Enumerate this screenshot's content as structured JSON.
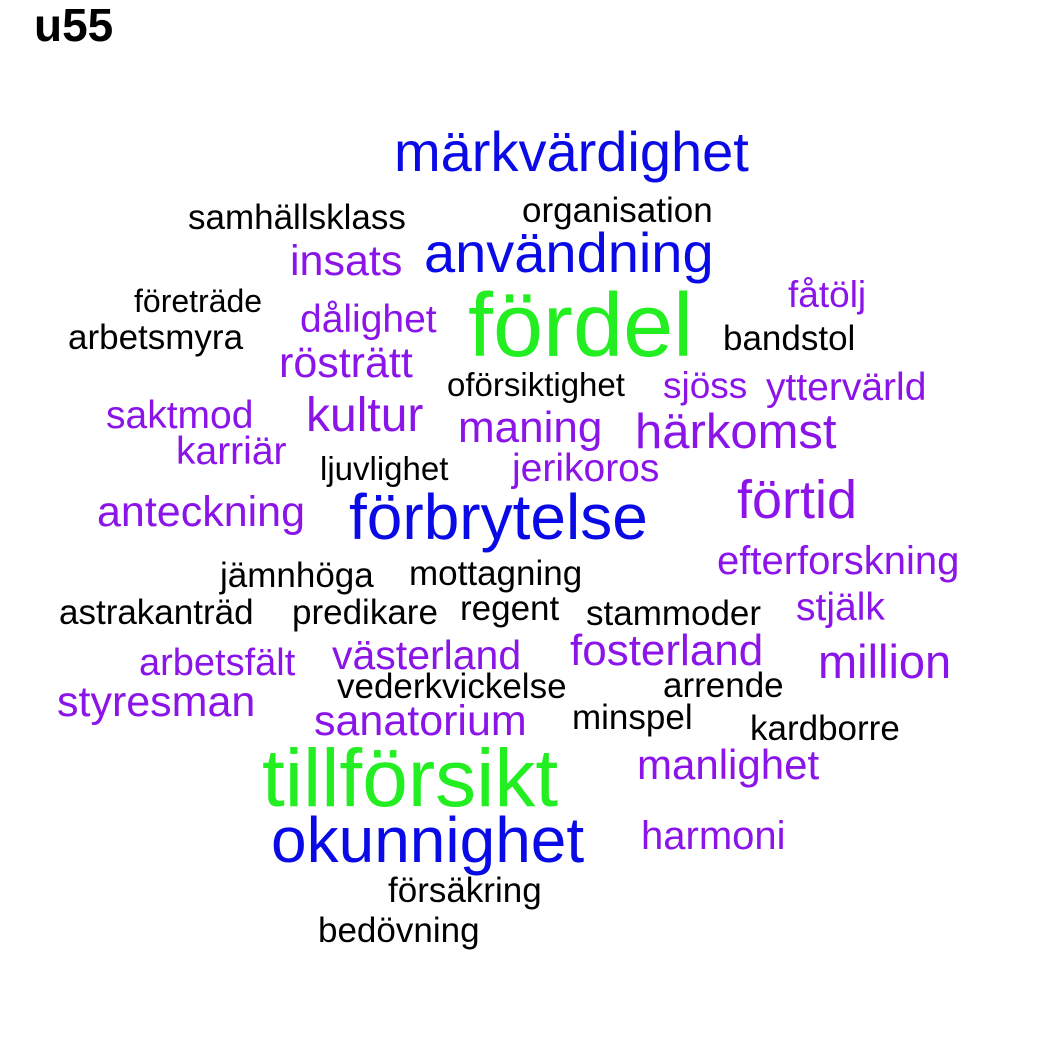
{
  "title": "u55",
  "colors": {
    "green": "#22ee22",
    "blue": "#0a0ae6",
    "purple": "#8b14e8",
    "black": "#000000"
  },
  "words": [
    {
      "text": "märkvärdighet",
      "color": "blue"
    },
    {
      "text": "samhällsklass",
      "color": "black"
    },
    {
      "text": "organisation",
      "color": "black"
    },
    {
      "text": "insats",
      "color": "purple"
    },
    {
      "text": "användning",
      "color": "blue"
    },
    {
      "text": "fåtölj",
      "color": "purple"
    },
    {
      "text": "företräde",
      "color": "black"
    },
    {
      "text": "dålighet",
      "color": "purple"
    },
    {
      "text": "fördel",
      "color": "green"
    },
    {
      "text": "arbetsmyra",
      "color": "black"
    },
    {
      "text": "bandstol",
      "color": "black"
    },
    {
      "text": "rösträtt",
      "color": "purple"
    },
    {
      "text": "oförsiktighet",
      "color": "black"
    },
    {
      "text": "sjöss",
      "color": "purple"
    },
    {
      "text": "yttervärld",
      "color": "purple"
    },
    {
      "text": "saktmod",
      "color": "purple"
    },
    {
      "text": "kultur",
      "color": "purple"
    },
    {
      "text": "maning",
      "color": "purple"
    },
    {
      "text": "härkomst",
      "color": "purple"
    },
    {
      "text": "karriär",
      "color": "purple"
    },
    {
      "text": "ljuvlighet",
      "color": "black"
    },
    {
      "text": "jerikoros",
      "color": "purple"
    },
    {
      "text": "förtid",
      "color": "purple"
    },
    {
      "text": "anteckning",
      "color": "purple"
    },
    {
      "text": "förbrytelse",
      "color": "blue"
    },
    {
      "text": "efterforskning",
      "color": "purple"
    },
    {
      "text": "jämnhöga",
      "color": "black"
    },
    {
      "text": "mottagning",
      "color": "black"
    },
    {
      "text": "astrakanträd",
      "color": "black"
    },
    {
      "text": "predikare",
      "color": "black"
    },
    {
      "text": "regent",
      "color": "black"
    },
    {
      "text": "stammoder",
      "color": "black"
    },
    {
      "text": "stjälk",
      "color": "purple"
    },
    {
      "text": "arbetsfält",
      "color": "purple"
    },
    {
      "text": "västerland",
      "color": "purple"
    },
    {
      "text": "fosterland",
      "color": "purple"
    },
    {
      "text": "million",
      "color": "purple"
    },
    {
      "text": "vederkvickelse",
      "color": "black"
    },
    {
      "text": "arrende",
      "color": "black"
    },
    {
      "text": "styresman",
      "color": "purple"
    },
    {
      "text": "sanatorium",
      "color": "purple"
    },
    {
      "text": "minspel",
      "color": "black"
    },
    {
      "text": "kardborre",
      "color": "black"
    },
    {
      "text": "tillförsikt",
      "color": "green"
    },
    {
      "text": "manlighet",
      "color": "purple"
    },
    {
      "text": "okunnighet",
      "color": "blue"
    },
    {
      "text": "harmoni",
      "color": "purple"
    },
    {
      "text": "försäkring",
      "color": "black"
    },
    {
      "text": "bedövning",
      "color": "black"
    }
  ]
}
